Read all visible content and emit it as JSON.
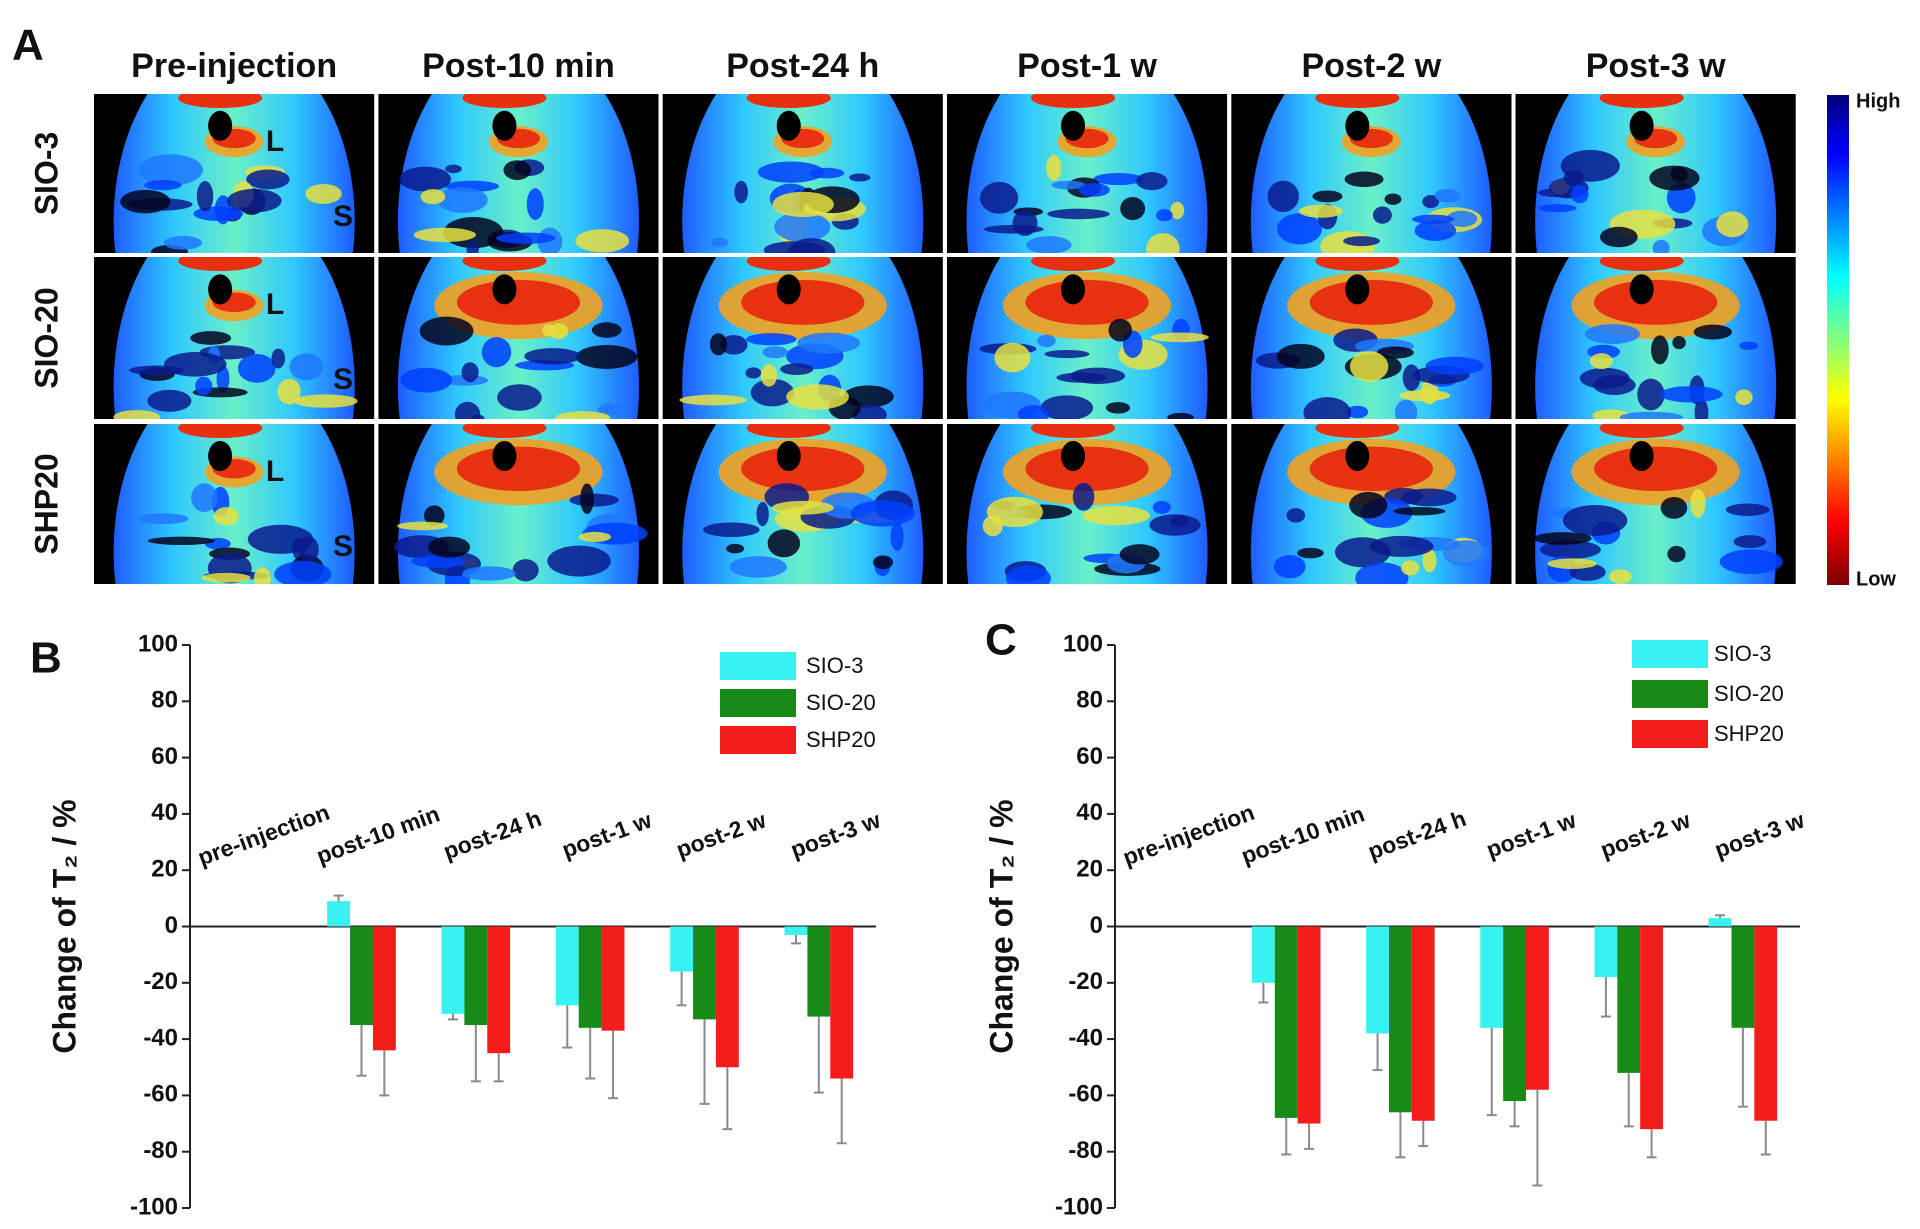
{
  "panel_a": {
    "label": "A",
    "columns": [
      "Pre-injection",
      "Post-10 min",
      "Post-24 h",
      "Post-1 w",
      "Post-2 w",
      "Post-3 w"
    ],
    "rows": [
      "SIO-3",
      "SIO-20",
      "SHP20"
    ],
    "organ_labels": [
      "L",
      "S"
    ],
    "colorbar": {
      "high": "High",
      "low": "Low"
    }
  },
  "chart_data": [
    {
      "type": "bar",
      "panel_label": "B",
      "y_label": "Change of T₂ / %",
      "categories": [
        "pre-injection",
        "post-10 min",
        "post-24 h",
        "post-1 w",
        "post-2 w",
        "post-3 w"
      ],
      "series": [
        {
          "name": "SIO-3",
          "color": "#38f2f2",
          "values": [
            null,
            9,
            -31,
            -28,
            -16,
            -3
          ],
          "errors": [
            null,
            2,
            2,
            15,
            12,
            3
          ]
        },
        {
          "name": "SIO-20",
          "color": "#178a17",
          "values": [
            null,
            -35,
            -35,
            -36,
            -33,
            -32
          ],
          "errors": [
            null,
            18,
            20,
            18,
            30,
            27
          ]
        },
        {
          "name": "SHP20",
          "color": "#f51c1c",
          "values": [
            null,
            -44,
            -45,
            -37,
            -50,
            -54
          ],
          "errors": [
            null,
            16,
            10,
            24,
            22,
            23
          ]
        }
      ],
      "ylim": [
        -100,
        100
      ],
      "yticks": [
        -100,
        -80,
        -60,
        -40,
        -20,
        0,
        20,
        40,
        60,
        80,
        100
      ],
      "legend": "upper right"
    },
    {
      "type": "bar",
      "panel_label": "C",
      "y_label": "Change of T₂ / %",
      "categories": [
        "pre-injection",
        "post-10 min",
        "post-24 h",
        "post-1 w",
        "post-2 w",
        "post-3 w"
      ],
      "series": [
        {
          "name": "SIO-3",
          "color": "#38f2f2",
          "values": [
            null,
            -20,
            -38,
            -36,
            -18,
            3
          ],
          "errors": [
            null,
            7,
            13,
            31,
            14,
            1
          ]
        },
        {
          "name": "SIO-20",
          "color": "#178a17",
          "values": [
            null,
            -68,
            -66,
            -62,
            -52,
            -36
          ],
          "errors": [
            null,
            13,
            16,
            9,
            19,
            28
          ]
        },
        {
          "name": "SHP20",
          "color": "#f51c1c",
          "values": [
            null,
            -70,
            -69,
            -58,
            -72,
            -69
          ],
          "errors": [
            null,
            9,
            9,
            34,
            10,
            12
          ]
        }
      ],
      "ylim": [
        -100,
        100
      ],
      "yticks": [
        -100,
        -80,
        -60,
        -40,
        -20,
        0,
        20,
        40,
        60,
        80,
        100
      ],
      "legend": "upper right"
    }
  ]
}
